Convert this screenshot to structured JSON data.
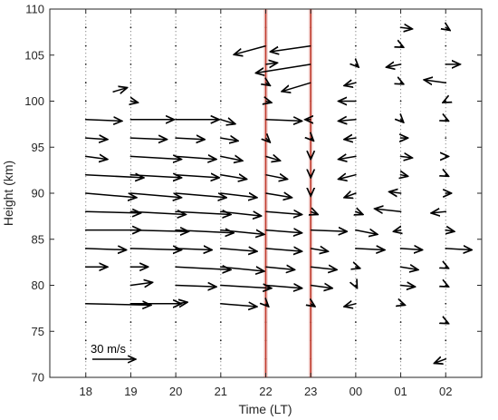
{
  "chart_data": {
    "type": "vector-wind-profile",
    "xlabel": "Time (LT)",
    "ylabel": "Height (km)",
    "x_ticks": [
      "18",
      "19",
      "20",
      "21",
      "22",
      "23",
      "00",
      "01",
      "02"
    ],
    "y_ticks": [
      70,
      75,
      80,
      85,
      90,
      95,
      100,
      105,
      110
    ],
    "xlim": [
      17.2,
      26.8
    ],
    "ylim": [
      70,
      110
    ],
    "scale_speed_ms": 30,
    "scale_label": "30 m/s",
    "highlight_times": [
      "22",
      "23"
    ],
    "highlight_color": "#c0392b",
    "vector_color": "#000000",
    "heights_km": [
      72,
      74,
      76,
      78,
      80,
      82,
      84,
      86,
      88,
      90,
      92,
      94,
      96,
      98,
      100,
      102,
      104,
      106,
      108
    ],
    "vectors": [
      {
        "time": "18",
        "height": 98,
        "u": 25,
        "v": -1
      },
      {
        "time": "18",
        "height": 96,
        "u": 15,
        "v": -1
      },
      {
        "time": "18",
        "height": 94,
        "u": 15,
        "v": -2
      },
      {
        "time": "18",
        "height": 92,
        "u": 40,
        "v": -2
      },
      {
        "time": "18",
        "height": 90,
        "u": 35,
        "v": -3
      },
      {
        "time": "18",
        "height": 88,
        "u": 38,
        "v": -1
      },
      {
        "time": "18",
        "height": 86,
        "u": 38,
        "v": 0
      },
      {
        "time": "18",
        "height": 84,
        "u": 28,
        "v": -1
      },
      {
        "time": "18",
        "height": 82,
        "u": 15,
        "v": 0
      },
      {
        "time": "18",
        "height": 78,
        "u": 45,
        "v": -1
      },
      {
        "time": "18.6",
        "height": 101,
        "u": 10,
        "v": 3
      },
      {
        "time": "19",
        "height": 100,
        "u": 5,
        "v": -1
      },
      {
        "time": "19",
        "height": 98,
        "u": 30,
        "v": 0
      },
      {
        "time": "19",
        "height": 96,
        "u": 25,
        "v": -1
      },
      {
        "time": "19",
        "height": 94,
        "u": 35,
        "v": -2
      },
      {
        "time": "19",
        "height": 92,
        "u": 35,
        "v": -2
      },
      {
        "time": "19",
        "height": 90,
        "u": 35,
        "v": -3
      },
      {
        "time": "19",
        "height": 88,
        "u": 38,
        "v": -2
      },
      {
        "time": "19",
        "height": 86,
        "u": 40,
        "v": -1
      },
      {
        "time": "19",
        "height": 84,
        "u": 35,
        "v": -1
      },
      {
        "time": "19",
        "height": 82,
        "u": 12,
        "v": 0
      },
      {
        "time": "19",
        "height": 80,
        "u": 15,
        "v": 2
      },
      {
        "time": "19",
        "height": 78,
        "u": 35,
        "v": 0
      },
      {
        "time": "20",
        "height": 98,
        "u": 30,
        "v": 0
      },
      {
        "time": "20",
        "height": 96,
        "u": 20,
        "v": -1
      },
      {
        "time": "20",
        "height": 94,
        "u": 28,
        "v": -2
      },
      {
        "time": "20",
        "height": 92,
        "u": 30,
        "v": -2
      },
      {
        "time": "20",
        "height": 90,
        "u": 35,
        "v": -3
      },
      {
        "time": "20",
        "height": 88,
        "u": 38,
        "v": -2
      },
      {
        "time": "20",
        "height": 86,
        "u": 40,
        "v": -2
      },
      {
        "time": "20",
        "height": 84,
        "u": 25,
        "v": -1
      },
      {
        "time": "20",
        "height": 82,
        "u": 38,
        "v": -2
      },
      {
        "time": "20",
        "height": 80,
        "u": 28,
        "v": -1
      },
      {
        "time": "20",
        "height": 78,
        "u": 8,
        "v": 1
      },
      {
        "time": "21",
        "height": 98,
        "u": 10,
        "v": -3
      },
      {
        "time": "21",
        "height": 96,
        "u": 12,
        "v": -2
      },
      {
        "time": "21",
        "height": 94,
        "u": 15,
        "v": -3
      },
      {
        "time": "21",
        "height": 92,
        "u": 18,
        "v": -3
      },
      {
        "time": "21",
        "height": 90,
        "u": 25,
        "v": -3
      },
      {
        "time": "21",
        "height": 88,
        "u": 28,
        "v": -3
      },
      {
        "time": "21",
        "height": 86,
        "u": 30,
        "v": -3
      },
      {
        "time": "21",
        "height": 84,
        "u": 25,
        "v": -2
      },
      {
        "time": "21",
        "height": 82,
        "u": 30,
        "v": -3
      },
      {
        "time": "21",
        "height": 80,
        "u": 35,
        "v": -2
      },
      {
        "time": "21",
        "height": 78,
        "u": 25,
        "v": -2
      },
      {
        "time": "22",
        "height": 106,
        "u": -22,
        "v": -6
      },
      {
        "time": "22",
        "height": 104,
        "u": 8,
        "v": 1
      },
      {
        "time": "22",
        "height": 102,
        "u": 3,
        "v": -2
      },
      {
        "time": "22",
        "height": 100,
        "u": 4,
        "v": -1
      },
      {
        "time": "22",
        "height": 98,
        "u": 25,
        "v": -1
      },
      {
        "time": "22",
        "height": 96,
        "u": 3,
        "v": -3
      },
      {
        "time": "22",
        "height": 94,
        "u": 10,
        "v": -3
      },
      {
        "time": "22",
        "height": 92,
        "u": 15,
        "v": -3
      },
      {
        "time": "22",
        "height": 90,
        "u": 18,
        "v": -3
      },
      {
        "time": "22",
        "height": 88,
        "u": 25,
        "v": -2
      },
      {
        "time": "22",
        "height": 86,
        "u": 25,
        "v": -2
      },
      {
        "time": "22",
        "height": 84,
        "u": 25,
        "v": -2
      },
      {
        "time": "22",
        "height": 82,
        "u": 20,
        "v": -2
      },
      {
        "time": "22",
        "height": 80,
        "u": 25,
        "v": -2
      },
      {
        "time": "22",
        "height": 78,
        "u": 2,
        "v": -2
      },
      {
        "time": "23",
        "height": 106,
        "u": -28,
        "v": -4
      },
      {
        "time": "23",
        "height": 104,
        "u": -38,
        "v": -6
      },
      {
        "time": "23",
        "height": 102,
        "u": -20,
        "v": -6
      },
      {
        "time": "23",
        "height": 98,
        "u": -4,
        "v": 0
      },
      {
        "time": "23",
        "height": 96,
        "u": 2,
        "v": -2
      },
      {
        "time": "23",
        "height": 94,
        "u": 0,
        "v": -2
      },
      {
        "time": "23",
        "height": 92,
        "u": 0,
        "v": -2
      },
      {
        "time": "23",
        "height": 90,
        "u": 0,
        "v": -2
      },
      {
        "time": "23",
        "height": 88,
        "u": 5,
        "v": -2
      },
      {
        "time": "23",
        "height": 86,
        "u": 25,
        "v": -1
      },
      {
        "time": "23",
        "height": 84,
        "u": 12,
        "v": -2
      },
      {
        "time": "23",
        "height": 82,
        "u": 18,
        "v": -2
      },
      {
        "time": "23",
        "height": 80,
        "u": 15,
        "v": -2
      },
      {
        "time": "23",
        "height": 78,
        "u": 3,
        "v": -2
      },
      {
        "time": "00",
        "height": 104,
        "u": 2,
        "v": -2
      },
      {
        "time": "00",
        "height": 102,
        "u": -8,
        "v": -2
      },
      {
        "time": "00",
        "height": 100,
        "u": -12,
        "v": 0
      },
      {
        "time": "00",
        "height": 98,
        "u": -12,
        "v": -1
      },
      {
        "time": "00",
        "height": 96,
        "u": -8,
        "v": -1
      },
      {
        "time": "00",
        "height": 94,
        "u": -12,
        "v": -2
      },
      {
        "time": "00",
        "height": 92,
        "u": -12,
        "v": -3
      },
      {
        "time": "00",
        "height": 90,
        "u": -8,
        "v": -3
      },
      {
        "time": "00",
        "height": 88,
        "u": 5,
        "v": -2
      },
      {
        "time": "00",
        "height": 86,
        "u": 15,
        "v": -3
      },
      {
        "time": "00",
        "height": 84,
        "u": 20,
        "v": -1
      },
      {
        "time": "00",
        "height": 82,
        "u": 3,
        "v": -1
      },
      {
        "time": "00",
        "height": 80,
        "u": 1,
        "v": -2
      },
      {
        "time": "00",
        "height": 78,
        "u": -8,
        "v": -2
      },
      {
        "time": "01",
        "height": 108,
        "u": 8,
        "v": -1
      },
      {
        "time": "01",
        "height": 106,
        "u": 2,
        "v": -1
      },
      {
        "time": "01",
        "height": 104,
        "u": -10,
        "v": -2
      },
      {
        "time": "01",
        "height": 102,
        "u": 2,
        "v": -1
      },
      {
        "time": "01",
        "height": 98,
        "u": 2,
        "v": -2
      },
      {
        "time": "01",
        "height": 96,
        "u": 5,
        "v": 0
      },
      {
        "time": "01",
        "height": 94,
        "u": 8,
        "v": -1
      },
      {
        "time": "01",
        "height": 92,
        "u": 5,
        "v": -1
      },
      {
        "time": "01",
        "height": 90,
        "u": -8,
        "v": 1
      },
      {
        "time": "01",
        "height": 88,
        "u": -18,
        "v": 2
      },
      {
        "time": "01",
        "height": 86,
        "u": -5,
        "v": -1
      },
      {
        "time": "01",
        "height": 84,
        "u": 15,
        "v": -1
      },
      {
        "time": "01",
        "height": 82,
        "u": 12,
        "v": -2
      },
      {
        "time": "01",
        "height": 80,
        "u": 10,
        "v": -1
      },
      {
        "time": "01",
        "height": 78,
        "u": 3,
        "v": -1
      },
      {
        "time": "02",
        "height": 108,
        "u": 3,
        "v": -2
      },
      {
        "time": "02",
        "height": 104,
        "u": 10,
        "v": 0
      },
      {
        "time": "02",
        "height": 102,
        "u": -15,
        "v": 2
      },
      {
        "time": "02",
        "height": 100,
        "u": -2,
        "v": -1
      },
      {
        "time": "02",
        "height": 98,
        "u": 2,
        "v": -1
      },
      {
        "time": "02",
        "height": 94,
        "u": 2,
        "v": 0
      },
      {
        "time": "02",
        "height": 92,
        "u": 2,
        "v": -1
      },
      {
        "time": "02",
        "height": 90,
        "u": 4,
        "v": 0
      },
      {
        "time": "02",
        "height": 88,
        "u": -10,
        "v": -1
      },
      {
        "time": "02",
        "height": 86,
        "u": 6,
        "v": -1
      },
      {
        "time": "02",
        "height": 84,
        "u": 18,
        "v": -1
      },
      {
        "time": "02",
        "height": 82,
        "u": 2,
        "v": -1
      },
      {
        "time": "02",
        "height": 80,
        "u": 2,
        "v": -1
      },
      {
        "time": "02",
        "height": 76,
        "u": 2,
        "v": -1
      },
      {
        "time": "02",
        "height": 72,
        "u": -8,
        "v": -3
      }
    ]
  }
}
